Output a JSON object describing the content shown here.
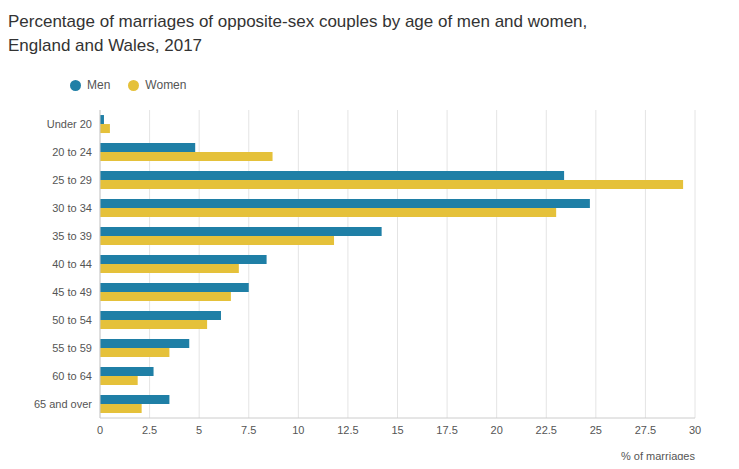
{
  "chart_data": {
    "type": "bar",
    "orientation": "horizontal",
    "title": "Percentage of marriages of opposite-sex couples by age of men and women, England and Wales, 2017",
    "x_label": "% of marriages",
    "categories": [
      "Under 20",
      "20 to 24",
      "25 to 29",
      "30 to 34",
      "35 to 39",
      "40 to 44",
      "45 to 49",
      "50 to 54",
      "55 to 59",
      "60 to 64",
      "65 and over"
    ],
    "series": [
      {
        "name": "Men",
        "color": "#1f7fa6",
        "values": [
          0.2,
          4.8,
          23.4,
          24.7,
          14.2,
          8.4,
          7.5,
          6.1,
          4.5,
          2.7,
          3.5
        ]
      },
      {
        "name": "Women",
        "color": "#e5c13a",
        "values": [
          0.5,
          8.7,
          29.4,
          23.0,
          11.8,
          7.0,
          6.6,
          5.4,
          3.5,
          1.9,
          2.1
        ]
      }
    ],
    "xlim": [
      0,
      30
    ],
    "xticks": [
      0,
      2.5,
      5,
      7.5,
      10,
      12.5,
      15,
      17.5,
      20,
      22.5,
      25,
      27.5,
      30
    ],
    "grid": true,
    "legend": "top-left"
  }
}
